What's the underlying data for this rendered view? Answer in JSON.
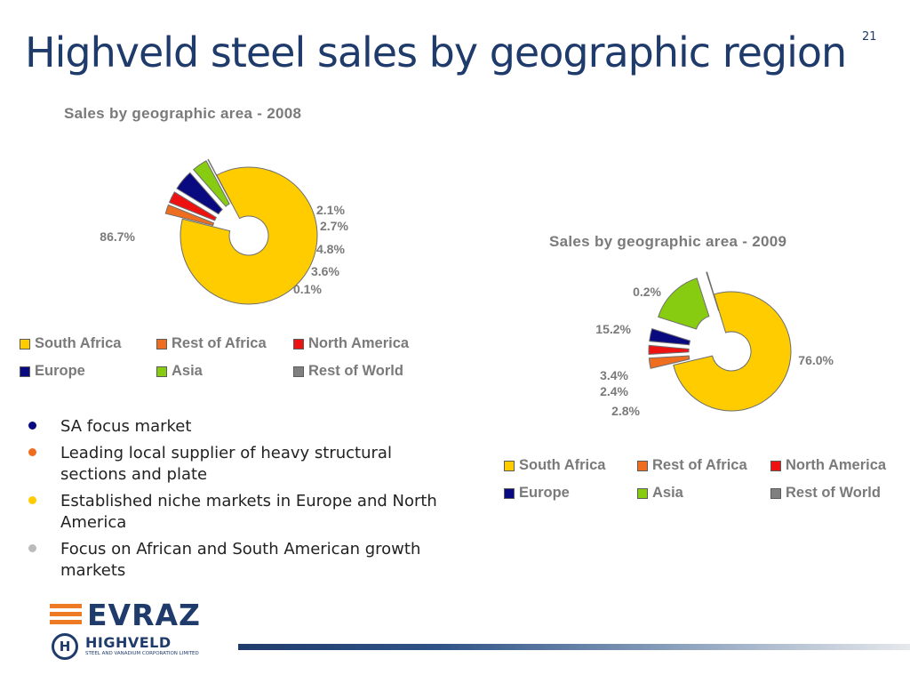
{
  "slide_number": "21",
  "title": "Highveld steel sales by geographic region",
  "colors": {
    "south_africa": "#ffcc00",
    "rest_of_africa": "#ee6d1f",
    "north_america": "#ee1111",
    "europe": "#0a0a80",
    "asia": "#88cc11",
    "rest_of_world": "#808080",
    "title_blue": "#1f3b6b"
  },
  "chart_data": [
    {
      "type": "pie",
      "title": "Sales by geographic area - 2008",
      "categories": [
        "South Africa",
        "Rest of Africa",
        "North America",
        "Europe",
        "Asia",
        "Rest of World"
      ],
      "values": [
        86.7,
        2.1,
        2.7,
        4.8,
        3.6,
        0.1
      ],
      "data_labels": [
        "86.7%",
        "2.1%",
        "2.7%",
        "4.8%",
        "3.6%",
        "0.1%"
      ],
      "legend": "bottom",
      "style": "exploded doughnut"
    },
    {
      "type": "pie",
      "title": "Sales by geographic area - 2009",
      "categories": [
        "South Africa",
        "Rest of Africa",
        "North America",
        "Europe",
        "Asia",
        "Rest of World"
      ],
      "values": [
        76.0,
        2.8,
        2.4,
        3.4,
        15.2,
        0.2
      ],
      "data_labels": [
        "76.0%",
        "2.8%",
        "2.4%",
        "3.4%",
        "15.2%",
        "0.2%"
      ],
      "legend": "bottom",
      "style": "exploded doughnut"
    }
  ],
  "bullets": [
    {
      "text": "SA focus market",
      "color": "#0a0a80"
    },
    {
      "text": "Leading local supplier of heavy structural sections and plate",
      "color": "#ee6d1f"
    },
    {
      "text": "Established niche markets in Europe and North America",
      "color": "#ffcc00"
    },
    {
      "text": "Focus on African and South American growth markets",
      "color": "#bbbbbb"
    }
  ],
  "logo": {
    "brand": "EVRAZ",
    "sub_brand": "HIGHVELD",
    "tagline": "STEEL AND VANADIUM CORPORATION LIMITED",
    "mark": "H"
  }
}
